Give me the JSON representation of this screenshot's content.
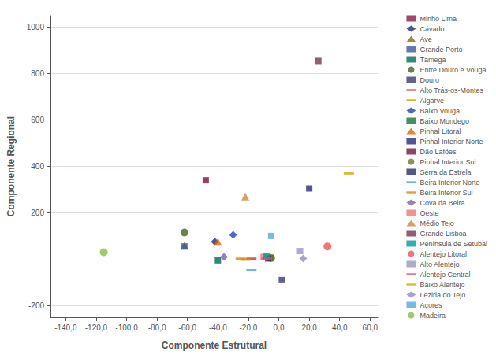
{
  "chart_data": {
    "type": "scatter",
    "xlabel": "Componente Estrutural",
    "ylabel": "Componente Regional",
    "xlim": [
      -150,
      65
    ],
    "ylim": [
      -250,
      1050
    ],
    "xticks": [
      {
        "value": -140,
        "label": "-140,0"
      },
      {
        "value": -120,
        "label": "-120,0"
      },
      {
        "value": -100,
        "label": "-100,0"
      },
      {
        "value": -80,
        "label": "-80,0"
      },
      {
        "value": -60,
        "label": "-60,0"
      },
      {
        "value": -40,
        "label": "-40,0"
      },
      {
        "value": -20,
        "label": "-20,0"
      },
      {
        "value": 0,
        "label": "0,0"
      },
      {
        "value": 20,
        "label": "20,0"
      },
      {
        "value": 40,
        "label": "40,0"
      },
      {
        "value": 60,
        "label": "60,0"
      }
    ],
    "yticks": [
      -200,
      200,
      400,
      600,
      800,
      1000
    ],
    "grid": "y",
    "legend": "right",
    "series": [
      {
        "name": "Minho Lima",
        "x": [
          -5
        ],
        "values": [
          5
        ],
        "marker": "square",
        "color": "#8B1A4A"
      },
      {
        "name": "Cávado",
        "x": [
          -42
        ],
        "values": [
          75
        ],
        "marker": "diamond",
        "color": "#1C2B7A"
      },
      {
        "name": "Ave",
        "x": [
          -62
        ],
        "values": [
          58
        ],
        "marker": "triangle",
        "color": "#8B6A10"
      },
      {
        "name": "Grande Porto",
        "x": [
          -62
        ],
        "values": [
          55
        ],
        "marker": "square",
        "color": "#3A5A9A"
      },
      {
        "name": "Tâmega",
        "x": [
          -40
        ],
        "values": [
          -5
        ],
        "marker": "square",
        "color": "#006A5A"
      },
      {
        "name": "Entre Douro e Vouga",
        "x": [
          -62
        ],
        "values": [
          115
        ],
        "marker": "circle",
        "color": "#4A6020"
      },
      {
        "name": "Douro",
        "x": [
          2
        ],
        "values": [
          -90
        ],
        "marker": "square",
        "color": "#3A3A70"
      },
      {
        "name": "Alto Trás-os-Montes",
        "x": [
          -18
        ],
        "values": [
          2
        ],
        "marker": "hline",
        "color": "#CC3333"
      },
      {
        "name": "Algarve",
        "x": [
          -22
        ],
        "values": [
          -2
        ],
        "marker": "hline",
        "color": "#CC9A00"
      },
      {
        "name": "Baixo Vouga",
        "x": [
          -30
        ],
        "values": [
          105
        ],
        "marker": "diamond",
        "color": "#2244BB"
      },
      {
        "name": "Baixo Mondego",
        "x": [
          -5
        ],
        "values": [
          5
        ],
        "marker": "square",
        "color": "#1A7040"
      },
      {
        "name": "Pinhal Litoral",
        "x": [
          -40
        ],
        "values": [
          75
        ],
        "marker": "triangle",
        "color": "#DD6600"
      },
      {
        "name": "Pinhal Interior Norte",
        "x": [
          20
        ],
        "values": [
          305
        ],
        "marker": "square",
        "color": "#2A2880"
      },
      {
        "name": "Dão Lafões",
        "x": [
          -48
        ],
        "values": [
          340
        ],
        "marker": "square",
        "color": "#7A1040"
      },
      {
        "name": "Pinhal Interior Sul",
        "x": [
          -5
        ],
        "values": [
          5
        ],
        "marker": "circle",
        "color": "#6A7A2A"
      },
      {
        "name": "Serra da Estrela",
        "x": [
          -7
        ],
        "values": [
          3
        ],
        "marker": "square",
        "color": "#2A2A70"
      },
      {
        "name": "Beira Interior Norte",
        "x": [
          -18
        ],
        "values": [
          -48
        ],
        "marker": "hline",
        "color": "#44AACC"
      },
      {
        "name": "Beira Interior Sul",
        "x": [
          -25
        ],
        "values": [
          2
        ],
        "marker": "hline",
        "color": "#DD8800"
      },
      {
        "name": "Cova da Beira",
        "x": [
          -36
        ],
        "values": [
          10
        ],
        "marker": "diamond",
        "color": "#7766AA"
      },
      {
        "name": "Oeste",
        "x": [
          -10
        ],
        "values": [
          10
        ],
        "marker": "square",
        "color": "#EE7777"
      },
      {
        "name": "Médio Tejo",
        "x": [
          -22
        ],
        "values": [
          270
        ],
        "marker": "triangle",
        "color": "#CC8844"
      },
      {
        "name": "Grande Lisboa",
        "x": [
          26
        ],
        "values": [
          855
        ],
        "marker": "square",
        "color": "#7A3355"
      },
      {
        "name": "Península de Setubal",
        "x": [
          -8
        ],
        "values": [
          15
        ],
        "marker": "square",
        "color": "#009999"
      },
      {
        "name": "Alentejo Litoral",
        "x": [
          32
        ],
        "values": [
          55
        ],
        "marker": "circle",
        "color": "#EE5555"
      },
      {
        "name": "Alto Alentejo",
        "x": [
          14
        ],
        "values": [
          35
        ],
        "marker": "square",
        "color": "#9999BB"
      },
      {
        "name": "Alentejo Central",
        "x": [
          -8
        ],
        "values": [
          3
        ],
        "marker": "hline",
        "color": "#CC5566"
      },
      {
        "name": "Baixo Alentejo",
        "x": [
          46
        ],
        "values": [
          370
        ],
        "marker": "hline",
        "color": "#CCAA00"
      },
      {
        "name": "Leziria do Tejo",
        "x": [
          16
        ],
        "values": [
          3
        ],
        "marker": "diamond",
        "color": "#9988BB"
      },
      {
        "name": "Açores",
        "x": [
          -5
        ],
        "values": [
          100
        ],
        "marker": "square",
        "color": "#55AADD"
      },
      {
        "name": "Madeira",
        "x": [
          -115
        ],
        "values": [
          30
        ],
        "marker": "circle",
        "color": "#88BB44"
      }
    ]
  }
}
